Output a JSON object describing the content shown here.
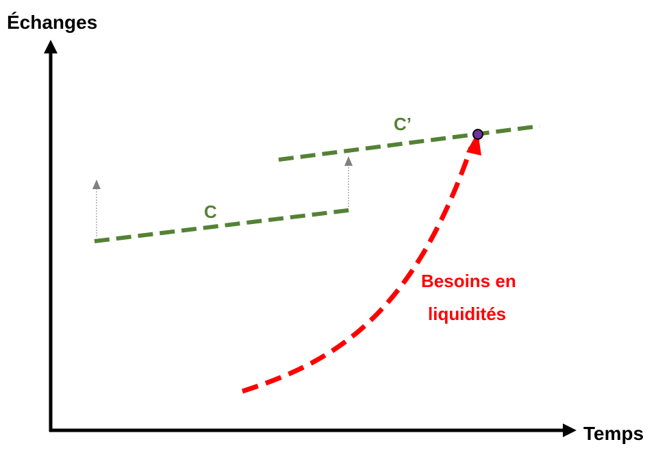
{
  "axes": {
    "y_label": "Échanges",
    "x_label": "Temps"
  },
  "lines": {
    "c": {
      "label": "C"
    },
    "c_prime": {
      "label": "C’"
    }
  },
  "curve": {
    "label_line1": "Besoins en",
    "label_line2": "liquidités"
  },
  "colors": {
    "axis": "#000000",
    "green_line": "#548235",
    "curve": "#ff0000",
    "shift_arrow": "#808080",
    "point_fill": "#7030a0"
  }
}
